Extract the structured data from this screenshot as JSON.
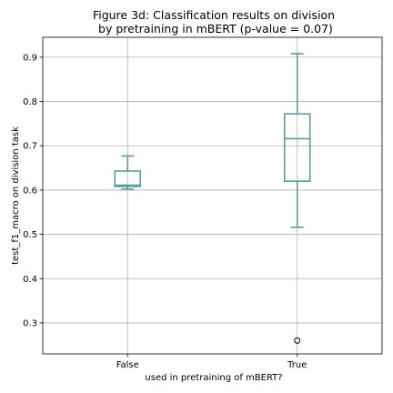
{
  "chart_data": {
    "type": "box",
    "title_lines": [
      "Figure 3d: Classification results on division",
      " by pretraining in mBERT (p-value = 0.07)"
    ],
    "xlabel": "used in pretraining of mBERT?",
    "ylabel": "test_f1_macro on division task",
    "ylim": [
      0.23,
      0.945
    ],
    "yticks": [
      0.3,
      0.4,
      0.5,
      0.6,
      0.7,
      0.8,
      0.9
    ],
    "ytick_labels": [
      "0.3",
      "0.4",
      "0.5",
      "0.6",
      "0.7",
      "0.8",
      "0.9"
    ],
    "grid": true,
    "box_color": "#5f9a9a",
    "categories": [
      "False",
      "True"
    ],
    "boxes": [
      {
        "category": "False",
        "whisker_low": 0.602,
        "q1": 0.608,
        "median": 0.611,
        "q3": 0.643,
        "whisker_high": 0.677,
        "fliers": []
      },
      {
        "category": "True",
        "whisker_low": 0.516,
        "q1": 0.62,
        "median": 0.716,
        "q3": 0.772,
        "whisker_high": 0.908,
        "fliers": [
          0.26
        ]
      }
    ]
  }
}
